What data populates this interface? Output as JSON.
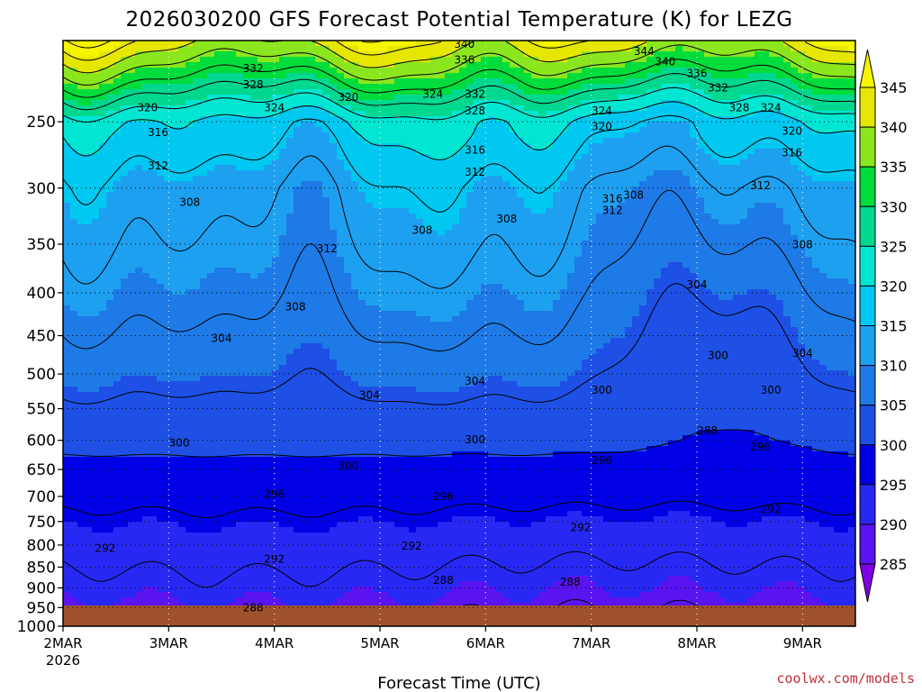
{
  "title": "2026030200 GFS Forecast Potential Temperature (K) for LEZG",
  "credit": "coolwx.com/models",
  "chart_data": {
    "type": "heatmap",
    "title": "2026030200 GFS Forecast Potential Temperature (K) for LEZG",
    "xlabel": "Forecast Time (UTC)",
    "ylabel": "",
    "x_ticks": [
      "2MAR",
      "3MAR",
      "4MAR",
      "5MAR",
      "6MAR",
      "7MAR",
      "8MAR",
      "9MAR"
    ],
    "x_year": "2026",
    "xlim_days": [
      0,
      7.5
    ],
    "y_ticks": [
      250,
      300,
      350,
      400,
      450,
      500,
      550,
      600,
      650,
      700,
      750,
      800,
      850,
      900,
      950,
      1000
    ],
    "ylim_hpa": [
      1000,
      200
    ],
    "y_scale": "log",
    "y_inverted": true,
    "grid": "dotted",
    "surface_color": "#a0522d",
    "colorbar": {
      "levels": [
        285,
        290,
        295,
        300,
        305,
        310,
        315,
        320,
        325,
        330,
        335,
        340,
        345
      ],
      "colors": [
        "#8000e6",
        "#5a14f0",
        "#2828f5",
        "#0000e6",
        "#1e50e6",
        "#1e7ae6",
        "#1ea0f0",
        "#00c8f0",
        "#00e6d2",
        "#00d890",
        "#00dc3c",
        "#8ce61e",
        "#e6e600",
        "#f5f500"
      ],
      "extend": "both"
    },
    "profile_pressures_hpa": [
      1000,
      950,
      900,
      850,
      800,
      750,
      700,
      650,
      600,
      550,
      500,
      450,
      400,
      350,
      300,
      250,
      200
    ],
    "profile_theta_k": [
      288,
      289,
      290.5,
      292,
      293.5,
      295,
      297,
      299,
      301,
      303,
      305,
      307,
      309,
      311,
      313,
      319,
      342
    ],
    "contour_interval_k": 4,
    "contour_labels": [
      {
        "day": 1.8,
        "p": 218,
        "text": "332"
      },
      {
        "day": 1.8,
        "p": 228,
        "text": "328"
      },
      {
        "day": 0.8,
        "p": 243,
        "text": "320"
      },
      {
        "day": 0.9,
        "p": 260,
        "text": "316"
      },
      {
        "day": 0.9,
        "p": 285,
        "text": "312"
      },
      {
        "day": 1.2,
        "p": 315,
        "text": "308"
      },
      {
        "day": 2.0,
        "p": 243,
        "text": "324"
      },
      {
        "day": 2.7,
        "p": 236,
        "text": "320"
      },
      {
        "day": 2.5,
        "p": 358,
        "text": "312"
      },
      {
        "day": 3.4,
        "p": 340,
        "text": "308"
      },
      {
        "day": 2.2,
        "p": 420,
        "text": "308"
      },
      {
        "day": 1.5,
        "p": 458,
        "text": "304"
      },
      {
        "day": 2.9,
        "p": 535,
        "text": "304"
      },
      {
        "day": 3.8,
        "p": 204,
        "text": "340"
      },
      {
        "day": 3.8,
        "p": 213,
        "text": "336"
      },
      {
        "day": 3.5,
        "p": 234,
        "text": "324"
      },
      {
        "day": 3.9,
        "p": 234,
        "text": "332"
      },
      {
        "day": 3.9,
        "p": 245,
        "text": "328"
      },
      {
        "day": 3.9,
        "p": 273,
        "text": "316"
      },
      {
        "day": 3.9,
        "p": 290,
        "text": "312"
      },
      {
        "day": 4.2,
        "p": 330,
        "text": "308"
      },
      {
        "day": 3.9,
        "p": 515,
        "text": "304"
      },
      {
        "day": 1.1,
        "p": 610,
        "text": "300"
      },
      {
        "day": 2.7,
        "p": 650,
        "text": "300"
      },
      {
        "day": 3.9,
        "p": 605,
        "text": "300"
      },
      {
        "day": 2.0,
        "p": 703,
        "text": "296"
      },
      {
        "day": 3.6,
        "p": 707,
        "text": "296"
      },
      {
        "day": 0.4,
        "p": 815,
        "text": "292"
      },
      {
        "day": 2.0,
        "p": 840,
        "text": "292"
      },
      {
        "day": 3.3,
        "p": 810,
        "text": "292"
      },
      {
        "day": 4.9,
        "p": 770,
        "text": "292"
      },
      {
        "day": 6.7,
        "p": 733,
        "text": "292"
      },
      {
        "day": 5.1,
        "p": 640,
        "text": "296"
      },
      {
        "day": 6.6,
        "p": 617,
        "text": "296"
      },
      {
        "day": 5.1,
        "p": 528,
        "text": "300"
      },
      {
        "day": 6.2,
        "p": 480,
        "text": "300"
      },
      {
        "day": 6.7,
        "p": 528,
        "text": "300"
      },
      {
        "day": 7.0,
        "p": 477,
        "text": "304"
      },
      {
        "day": 6.0,
        "p": 395,
        "text": "304"
      },
      {
        "day": 7.0,
        "p": 354,
        "text": "308"
      },
      {
        "day": 5.4,
        "p": 309,
        "text": "308"
      },
      {
        "day": 5.2,
        "p": 312,
        "text": "316"
      },
      {
        "day": 5.2,
        "p": 322,
        "text": "312"
      },
      {
        "day": 5.1,
        "p": 256,
        "text": "320"
      },
      {
        "day": 5.1,
        "p": 245,
        "text": "324"
      },
      {
        "day": 6.6,
        "p": 301,
        "text": "312"
      },
      {
        "day": 6.9,
        "p": 275,
        "text": "316"
      },
      {
        "day": 6.9,
        "p": 259,
        "text": "320"
      },
      {
        "day": 6.7,
        "p": 243,
        "text": "324"
      },
      {
        "day": 6.4,
        "p": 243,
        "text": "328"
      },
      {
        "day": 6.2,
        "p": 230,
        "text": "332"
      },
      {
        "day": 5.5,
        "p": 208,
        "text": "344"
      },
      {
        "day": 5.7,
        "p": 214,
        "text": "340"
      },
      {
        "day": 6.0,
        "p": 221,
        "text": "336"
      },
      {
        "day": 6.1,
        "p": 590,
        "text": "288"
      },
      {
        "day": 3.6,
        "p": 890,
        "text": "288"
      },
      {
        "day": 4.8,
        "p": 895,
        "text": "288"
      },
      {
        "day": 1.8,
        "p": 960,
        "text": "288"
      }
    ]
  }
}
